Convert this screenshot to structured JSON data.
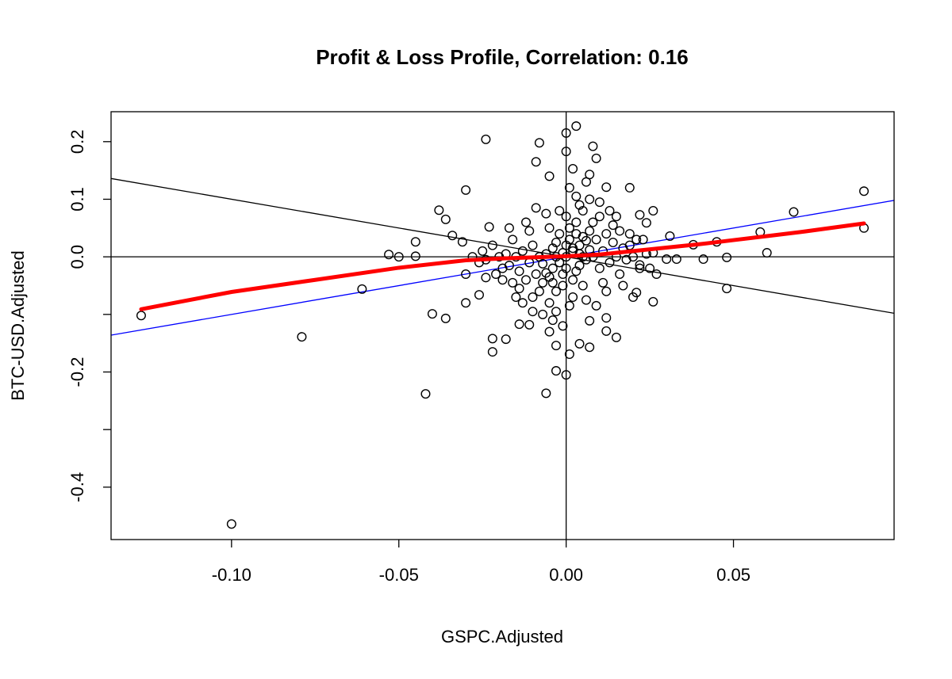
{
  "chart_data": {
    "type": "scatter",
    "title": "Profit & Loss Profile, Correlation: 0.16",
    "xlabel": "GSPC.Adjusted",
    "ylabel": "BTC-USD.Adjusted",
    "xlim": [
      -0.136,
      0.098
    ],
    "ylim": [
      -0.491,
      0.252
    ],
    "grid": false,
    "x_ticks": [
      {
        "v": -0.1,
        "label": "-0.10"
      },
      {
        "v": -0.05,
        "label": "-0.05"
      },
      {
        "v": 0.0,
        "label": "0.00"
      },
      {
        "v": 0.05,
        "label": "0.05"
      }
    ],
    "y_ticks": [
      {
        "v": 0.2,
        "label": "0.2"
      },
      {
        "v": 0.1,
        "label": "0.1"
      },
      {
        "v": 0.0,
        "label": "0.0"
      },
      {
        "v": -0.1,
        "label": ""
      },
      {
        "v": -0.2,
        "label": "-0.2"
      },
      {
        "v": -0.3,
        "label": ""
      },
      {
        "v": -0.4,
        "label": "-0.4"
      }
    ],
    "reference_lines": [
      {
        "kind": "horizontal",
        "y": 0,
        "color": "#000000"
      },
      {
        "kind": "vertical",
        "x": 0,
        "color": "#000000"
      },
      {
        "kind": "abline",
        "intercept": 0,
        "slope": -1,
        "color": "#000000"
      },
      {
        "kind": "abline",
        "intercept": 0,
        "slope": 1,
        "color": "#0000ff"
      }
    ],
    "smooth_line": {
      "color": "#ff0000",
      "points": [
        [
          -0.127,
          -0.091
        ],
        [
          -0.1,
          -0.061
        ],
        [
          -0.075,
          -0.04
        ],
        [
          -0.05,
          -0.019
        ],
        [
          -0.03,
          -0.006
        ],
        [
          -0.02,
          -0.003
        ],
        [
          0,
          0.001
        ],
        [
          0.01,
          0.004
        ],
        [
          0.02,
          0.01
        ],
        [
          0.03,
          0.016
        ],
        [
          0.04,
          0.022
        ],
        [
          0.05,
          0.029
        ],
        [
          0.06,
          0.036
        ],
        [
          0.07,
          0.043
        ],
        [
          0.089,
          0.058
        ]
      ]
    },
    "point_color": "#000000",
    "points": [
      [
        -0.127,
        -0.102
      ],
      [
        -0.1,
        -0.464
      ],
      [
        -0.079,
        -0.139
      ],
      [
        -0.061,
        -0.056
      ],
      [
        -0.053,
        0.004
      ],
      [
        -0.05,
        0.0
      ],
      [
        -0.045,
        0.026
      ],
      [
        -0.045,
        0.001
      ],
      [
        -0.042,
        -0.238
      ],
      [
        -0.04,
        -0.099
      ],
      [
        -0.036,
        -0.107
      ],
      [
        -0.038,
        0.081
      ],
      [
        -0.036,
        0.065
      ],
      [
        -0.03,
        0.116
      ],
      [
        -0.024,
        0.204
      ],
      [
        -0.034,
        0.037
      ],
      [
        -0.031,
        0.026
      ],
      [
        -0.03,
        -0.08
      ],
      [
        -0.026,
        -0.066
      ],
      [
        -0.022,
        -0.142
      ],
      [
        -0.022,
        -0.165
      ],
      [
        -0.023,
        0.052
      ],
      [
        -0.024,
        -0.036
      ],
      [
        0.089,
        0.114
      ],
      [
        0.089,
        0.05
      ],
      [
        0.068,
        0.078
      ],
      [
        0.058,
        0.043
      ],
      [
        0.06,
        0.007
      ],
      [
        0.048,
        -0.055
      ],
      [
        0.048,
        -0.001
      ],
      [
        0.045,
        0.026
      ],
      [
        0.041,
        -0.004
      ],
      [
        0.038,
        0.021
      ],
      [
        0.033,
        -0.004
      ],
      [
        0.031,
        0.036
      ],
      [
        0.03,
        -0.004
      ],
      [
        0.026,
        0.007
      ],
      [
        0.026,
        0.08
      ],
      [
        0.024,
        0.059
      ],
      [
        0.022,
        0.073
      ],
      [
        0.026,
        -0.078
      ],
      [
        0.02,
        -0.07
      ],
      [
        0.021,
        -0.062
      ],
      [
        0.022,
        -0.014
      ],
      [
        0.003,
        0.227
      ],
      [
        0.0,
        0.215
      ],
      [
        -0.008,
        0.198
      ],
      [
        0.008,
        0.192
      ],
      [
        -0.009,
        0.165
      ],
      [
        0.009,
        0.171
      ],
      [
        0.0,
        0.183
      ],
      [
        -0.005,
        0.14
      ],
      [
        0.007,
        0.143
      ],
      [
        0.012,
        0.121
      ],
      [
        0.019,
        0.12
      ],
      [
        0.002,
        0.153
      ],
      [
        0.0,
        -0.205
      ],
      [
        -0.003,
        -0.198
      ],
      [
        -0.006,
        -0.237
      ],
      [
        0.004,
        -0.151
      ],
      [
        0.007,
        -0.157
      ],
      [
        0.015,
        -0.14
      ],
      [
        -0.018,
        -0.143
      ],
      [
        -0.014,
        -0.117
      ],
      [
        -0.011,
        -0.118
      ],
      [
        0.001,
        -0.169
      ],
      [
        -0.003,
        -0.154
      ],
      [
        0.007,
        -0.111
      ],
      [
        0.012,
        -0.106
      ],
      [
        0.012,
        -0.129
      ],
      [
        0,
        0
      ],
      [
        0.002,
        0.01
      ],
      [
        -0.002,
        -0.01
      ],
      [
        0.004,
        0.02
      ],
      [
        -0.004,
        -0.02
      ],
      [
        0.006,
        -0.005
      ],
      [
        -0.006,
        0.005
      ],
      [
        0.001,
        0.03
      ],
      [
        -0.001,
        -0.03
      ],
      [
        0.003,
        -0.025
      ],
      [
        -0.003,
        0.025
      ],
      [
        0.005,
        0.035
      ],
      [
        -0.005,
        -0.035
      ],
      [
        0.007,
        0.012
      ],
      [
        -0.007,
        -0.012
      ],
      [
        0.002,
        -0.04
      ],
      [
        -0.002,
        0.04
      ],
      [
        0.008,
        0.0
      ],
      [
        -0.008,
        0.0
      ],
      [
        0.004,
        0.005
      ],
      [
        -0.004,
        0.015
      ],
      [
        0.006,
        0.028
      ],
      [
        -0.006,
        -0.028
      ],
      [
        0.001,
        0.05
      ],
      [
        -0.001,
        -0.05
      ],
      [
        0.003,
        0.06
      ],
      [
        -0.003,
        -0.06
      ],
      [
        0.0,
        0.07
      ],
      [
        0.002,
        -0.07
      ],
      [
        -0.002,
        0.08
      ],
      [
        0.001,
        -0.085
      ],
      [
        0.004,
        0.09
      ],
      [
        -0.003,
        -0.095
      ],
      [
        0.005,
        -0.05
      ],
      [
        -0.005,
        0.05
      ],
      [
        0.007,
        0.045
      ],
      [
        -0.007,
        -0.045
      ],
      [
        0.009,
        0.03
      ],
      [
        -0.009,
        -0.03
      ],
      [
        0.01,
        -0.02
      ],
      [
        -0.01,
        0.02
      ],
      [
        0.011,
        0.01
      ],
      [
        -0.011,
        -0.01
      ],
      [
        0.012,
        0.04
      ],
      [
        -0.012,
        -0.04
      ],
      [
        0.013,
        -0.01
      ],
      [
        -0.013,
        0.01
      ],
      [
        0.014,
        0.025
      ],
      [
        -0.014,
        -0.025
      ],
      [
        0.015,
        0.0
      ],
      [
        -0.015,
        0.0
      ],
      [
        0.016,
        -0.03
      ],
      [
        -0.016,
        0.03
      ],
      [
        0.017,
        0.015
      ],
      [
        -0.017,
        -0.015
      ],
      [
        0.018,
        -0.005
      ],
      [
        -0.018,
        0.005
      ],
      [
        0.019,
        0.02
      ],
      [
        -0.019,
        -0.02
      ],
      [
        0.02,
        0.0
      ],
      [
        -0.02,
        0.0
      ],
      [
        0.008,
        0.06
      ],
      [
        -0.008,
        -0.06
      ],
      [
        0.01,
        0.07
      ],
      [
        -0.01,
        -0.07
      ],
      [
        0.006,
        -0.075
      ],
      [
        -0.006,
        0.075
      ],
      [
        0.012,
        -0.06
      ],
      [
        -0.012,
        0.06
      ],
      [
        0.014,
        0.055
      ],
      [
        -0.014,
        -0.055
      ],
      [
        0.009,
        -0.085
      ],
      [
        -0.009,
        0.085
      ],
      [
        0.003,
        0.105
      ],
      [
        -0.004,
        -0.11
      ],
      [
        0.016,
        0.045
      ],
      [
        -0.016,
        -0.045
      ],
      [
        0.007,
        0.1
      ],
      [
        -0.007,
        -0.1
      ],
      [
        0.011,
        -0.045
      ],
      [
        -0.011,
        0.045
      ],
      [
        0.021,
        0.03
      ],
      [
        -0.021,
        -0.03
      ],
      [
        0.022,
        -0.02
      ],
      [
        -0.022,
        0.02
      ],
      [
        0.005,
        0.08
      ],
      [
        -0.005,
        -0.08
      ],
      [
        0.013,
        0.08
      ],
      [
        -0.013,
        -0.08
      ],
      [
        0.017,
        -0.05
      ],
      [
        -0.017,
        0.05
      ],
      [
        0.019,
        0.04
      ],
      [
        -0.019,
        -0.04
      ],
      [
        0.024,
        0.005
      ],
      [
        -0.024,
        -0.005
      ],
      [
        0.001,
        0.12
      ],
      [
        -0.001,
        -0.12
      ],
      [
        0.006,
        0.13
      ],
      [
        -0.005,
        -0.13
      ],
      [
        0.015,
        0.07
      ],
      [
        -0.015,
        -0.07
      ],
      [
        0.01,
        0.095
      ],
      [
        -0.01,
        -0.095
      ],
      [
        0.002,
        0.015
      ],
      [
        -0.003,
        0.0
      ],
      [
        0.004,
        -0.015
      ],
      [
        0.0,
        -0.02
      ],
      [
        0.0,
        0.02
      ],
      [
        0.005,
        0.0
      ],
      [
        -0.001,
        0.007
      ],
      [
        0.003,
        0.04
      ],
      [
        -0.004,
        -0.045
      ],
      [
        -0.026,
        -0.01
      ],
      [
        -0.028,
        0.0
      ],
      [
        -0.025,
        0.01
      ],
      [
        -0.03,
        -0.03
      ],
      [
        0.025,
        -0.02
      ],
      [
        0.027,
        -0.03
      ],
      [
        0.023,
        0.03
      ]
    ]
  }
}
